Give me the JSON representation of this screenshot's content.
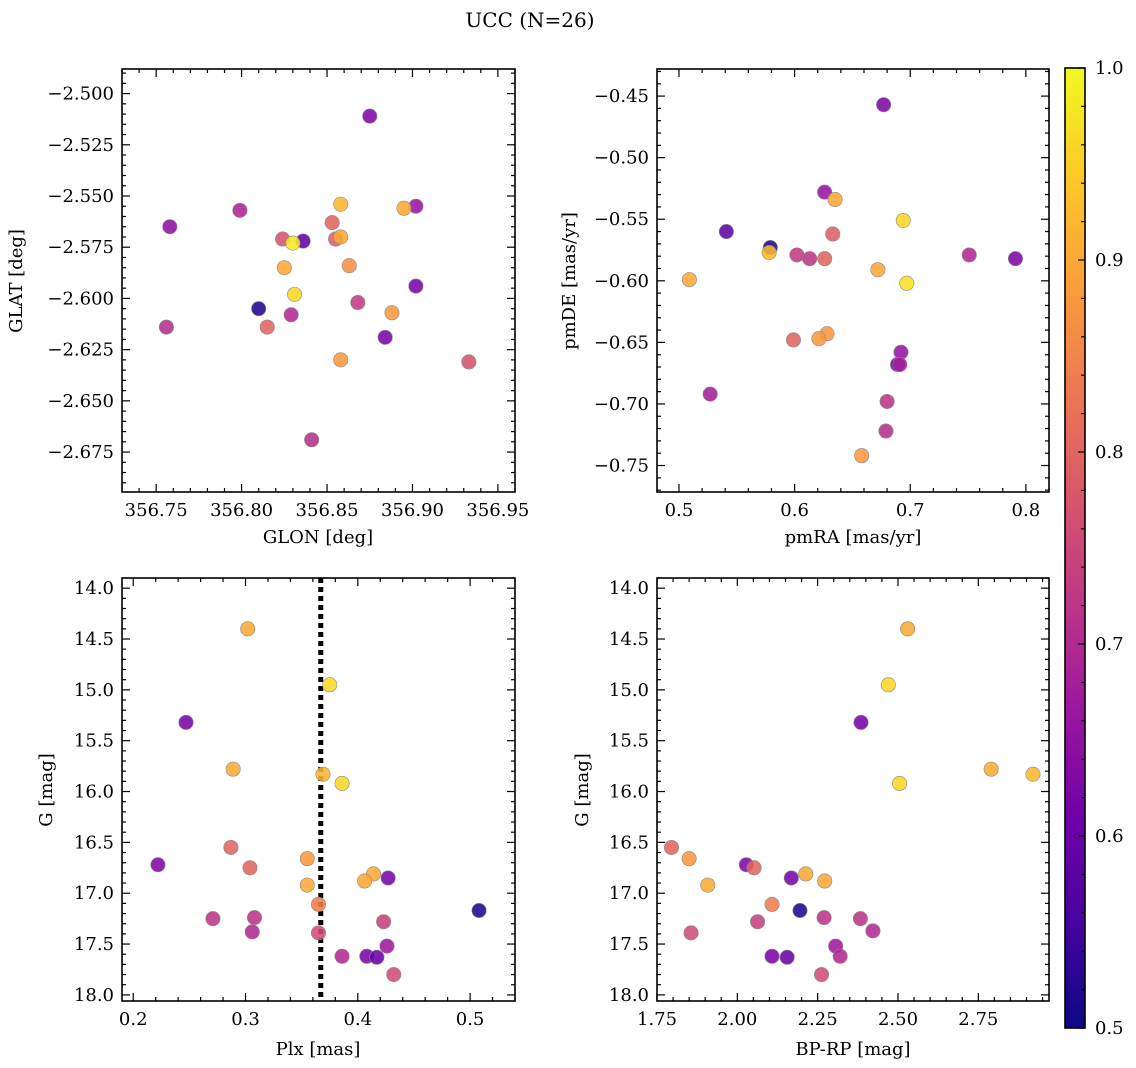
{
  "figure_title": "UCC (N=26)",
  "colorbar": {
    "min": 0.5,
    "max": 1.0,
    "ticks": [
      "0.5",
      "0.6",
      "0.7",
      "0.8",
      "0.9",
      "1.0"
    ],
    "colormap": "plasma"
  },
  "colormap_stops": [
    "#0d0887",
    "#46039f",
    "#7201a8",
    "#9c179e",
    "#bd3786",
    "#d8576b",
    "#ed7953",
    "#fb9f3a",
    "#fdca26",
    "#f0f921"
  ],
  "chart_data": [
    {
      "type": "scatter",
      "id": "glon-glat",
      "xlabel": "GLON [deg]",
      "ylabel": "GLAT [deg]",
      "xlim": [
        356.73,
        356.96
      ],
      "ylim": [
        -2.6945,
        -2.488
      ],
      "xticks": [
        356.75,
        356.8,
        356.85,
        356.9,
        356.95
      ],
      "xtick_labels": [
        "356.75",
        "356.80",
        "356.85",
        "356.90",
        "356.95"
      ],
      "yticks": [
        -2.5,
        -2.525,
        -2.55,
        -2.575,
        -2.6,
        -2.625,
        -2.65,
        -2.675
      ],
      "ytick_labels": [
        "−2.500",
        "−2.525",
        "−2.550",
        "−2.575",
        "−2.600",
        "−2.625",
        "−2.650",
        "−2.675"
      ],
      "points": [
        {
          "x": 356.875,
          "y": -2.511,
          "p": 0.63
        },
        {
          "x": 356.799,
          "y": -2.557,
          "p": 0.69
        },
        {
          "x": 356.758,
          "y": -2.565,
          "p": 0.65
        },
        {
          "x": 356.902,
          "y": -2.555,
          "p": 0.66
        },
        {
          "x": 356.858,
          "y": -2.554,
          "p": 0.92
        },
        {
          "x": 356.895,
          "y": -2.556,
          "p": 0.9
        },
        {
          "x": 356.853,
          "y": -2.563,
          "p": 0.8
        },
        {
          "x": 356.824,
          "y": -2.571,
          "p": 0.77
        },
        {
          "x": 356.836,
          "y": -2.572,
          "p": 0.59
        },
        {
          "x": 356.83,
          "y": -2.573,
          "p": 0.98
        },
        {
          "x": 356.855,
          "y": -2.571,
          "p": 0.79
        },
        {
          "x": 356.858,
          "y": -2.57,
          "p": 0.9
        },
        {
          "x": 356.825,
          "y": -2.585,
          "p": 0.9
        },
        {
          "x": 356.863,
          "y": -2.584,
          "p": 0.87
        },
        {
          "x": 356.831,
          "y": -2.598,
          "p": 0.96
        },
        {
          "x": 356.902,
          "y": -2.594,
          "p": 0.62
        },
        {
          "x": 356.868,
          "y": -2.602,
          "p": 0.73
        },
        {
          "x": 356.81,
          "y": -2.605,
          "p": 0.52
        },
        {
          "x": 356.888,
          "y": -2.607,
          "p": 0.88
        },
        {
          "x": 356.829,
          "y": -2.608,
          "p": 0.7
        },
        {
          "x": 356.815,
          "y": -2.614,
          "p": 0.8
        },
        {
          "x": 356.756,
          "y": -2.614,
          "p": 0.71
        },
        {
          "x": 356.884,
          "y": -2.619,
          "p": 0.62
        },
        {
          "x": 356.858,
          "y": -2.63,
          "p": 0.88
        },
        {
          "x": 356.933,
          "y": -2.631,
          "p": 0.77
        },
        {
          "x": 356.841,
          "y": -2.669,
          "p": 0.71
        }
      ]
    },
    {
      "type": "scatter",
      "id": "pm",
      "xlabel": "pmRA [mas/yr]",
      "ylabel": "pmDE [mas/yr]",
      "xlim": [
        0.481,
        0.82
      ],
      "ylim": [
        -0.7715,
        -0.428
      ],
      "xticks": [
        0.5,
        0.6,
        0.7,
        0.8
      ],
      "xtick_labels": [
        "0.5",
        "0.6",
        "0.7",
        "0.8"
      ],
      "yticks": [
        -0.45,
        -0.5,
        -0.55,
        -0.6,
        -0.65,
        -0.7,
        -0.75
      ],
      "ytick_labels": [
        "−0.45",
        "−0.50",
        "−0.55",
        "−0.60",
        "−0.65",
        "−0.70",
        "−0.75"
      ],
      "points": [
        {
          "x": 0.677,
          "y": -0.457,
          "p": 0.63
        },
        {
          "x": 0.626,
          "y": -0.528,
          "p": 0.66
        },
        {
          "x": 0.635,
          "y": -0.534,
          "p": 0.9
        },
        {
          "x": 0.694,
          "y": -0.551,
          "p": 0.96
        },
        {
          "x": 0.541,
          "y": -0.56,
          "p": 0.59
        },
        {
          "x": 0.633,
          "y": -0.562,
          "p": 0.79
        },
        {
          "x": 0.579,
          "y": -0.573,
          "p": 0.52
        },
        {
          "x": 0.578,
          "y": -0.577,
          "p": 0.92
        },
        {
          "x": 0.602,
          "y": -0.579,
          "p": 0.73
        },
        {
          "x": 0.751,
          "y": -0.579,
          "p": 0.7
        },
        {
          "x": 0.613,
          "y": -0.582,
          "p": 0.72
        },
        {
          "x": 0.626,
          "y": -0.582,
          "p": 0.8
        },
        {
          "x": 0.791,
          "y": -0.582,
          "p": 0.63
        },
        {
          "x": 0.672,
          "y": -0.591,
          "p": 0.9
        },
        {
          "x": 0.509,
          "y": -0.599,
          "p": 0.9
        },
        {
          "x": 0.697,
          "y": -0.602,
          "p": 0.97
        },
        {
          "x": 0.628,
          "y": -0.643,
          "p": 0.88
        },
        {
          "x": 0.599,
          "y": -0.648,
          "p": 0.8
        },
        {
          "x": 0.621,
          "y": -0.647,
          "p": 0.88
        },
        {
          "x": 0.692,
          "y": -0.658,
          "p": 0.66
        },
        {
          "x": 0.689,
          "y": -0.668,
          "p": 0.6
        },
        {
          "x": 0.691,
          "y": -0.668,
          "p": 0.68
        },
        {
          "x": 0.527,
          "y": -0.692,
          "p": 0.68
        },
        {
          "x": 0.68,
          "y": -0.698,
          "p": 0.72
        },
        {
          "x": 0.679,
          "y": -0.722,
          "p": 0.71
        },
        {
          "x": 0.658,
          "y": -0.742,
          "p": 0.88
        }
      ]
    },
    {
      "type": "scatter",
      "id": "plx-g",
      "xlabel": "Plx [mas]",
      "ylabel": "G [mag]",
      "xlim": [
        0.19,
        0.54
      ],
      "ylim": [
        18.06,
        13.9
      ],
      "xticks": [
        0.2,
        0.3,
        0.4,
        0.5
      ],
      "xtick_labels": [
        "0.2",
        "0.3",
        "0.4",
        "0.5"
      ],
      "yticks": [
        14.0,
        14.5,
        15.0,
        15.5,
        16.0,
        16.5,
        17.0,
        17.5,
        18.0
      ],
      "ytick_labels": [
        "14.0",
        "14.5",
        "15.0",
        "15.5",
        "16.0",
        "16.5",
        "17.0",
        "17.5",
        "18.0"
      ],
      "vline": 0.367,
      "points": [
        {
          "x": 0.302,
          "y": 14.4,
          "p": 0.9
        },
        {
          "x": 0.375,
          "y": 14.95,
          "p": 0.96
        },
        {
          "x": 0.247,
          "y": 15.32,
          "p": 0.62
        },
        {
          "x": 0.289,
          "y": 15.78,
          "p": 0.9
        },
        {
          "x": 0.369,
          "y": 15.83,
          "p": 0.92
        },
        {
          "x": 0.386,
          "y": 15.92,
          "p": 0.96
        },
        {
          "x": 0.287,
          "y": 16.55,
          "p": 0.8
        },
        {
          "x": 0.355,
          "y": 16.66,
          "p": 0.88
        },
        {
          "x": 0.222,
          "y": 16.72,
          "p": 0.63
        },
        {
          "x": 0.304,
          "y": 16.75,
          "p": 0.8
        },
        {
          "x": 0.414,
          "y": 16.81,
          "p": 0.9
        },
        {
          "x": 0.427,
          "y": 16.85,
          "p": 0.62
        },
        {
          "x": 0.406,
          "y": 16.88,
          "p": 0.9
        },
        {
          "x": 0.355,
          "y": 16.92,
          "p": 0.9
        },
        {
          "x": 0.365,
          "y": 17.11,
          "p": 0.84
        },
        {
          "x": 0.508,
          "y": 17.17,
          "p": 0.52
        },
        {
          "x": 0.308,
          "y": 17.24,
          "p": 0.72
        },
        {
          "x": 0.271,
          "y": 17.25,
          "p": 0.72
        },
        {
          "x": 0.423,
          "y": 17.28,
          "p": 0.74
        },
        {
          "x": 0.306,
          "y": 17.38,
          "p": 0.7
        },
        {
          "x": 0.365,
          "y": 17.39,
          "p": 0.76
        },
        {
          "x": 0.426,
          "y": 17.52,
          "p": 0.67
        },
        {
          "x": 0.386,
          "y": 17.62,
          "p": 0.7
        },
        {
          "x": 0.408,
          "y": 17.62,
          "p": 0.62
        },
        {
          "x": 0.417,
          "y": 17.63,
          "p": 0.6
        },
        {
          "x": 0.432,
          "y": 17.8,
          "p": 0.76
        }
      ]
    },
    {
      "type": "scatter",
      "id": "cmd",
      "xlabel": "BP-RP [mag]",
      "ylabel": "G [mag]",
      "xlim": [
        1.75,
        2.97
      ],
      "ylim": [
        18.06,
        13.9
      ],
      "xticks": [
        1.75,
        2.0,
        2.25,
        2.5,
        2.75
      ],
      "xtick_labels": [
        "1.75",
        "2.00",
        "2.25",
        "2.50",
        "2.75"
      ],
      "yticks": [
        14.0,
        14.5,
        15.0,
        15.5,
        16.0,
        16.5,
        17.0,
        17.5,
        18.0
      ],
      "ytick_labels": [
        "14.0",
        "14.5",
        "15.0",
        "15.5",
        "16.0",
        "16.5",
        "17.0",
        "17.5",
        "18.0"
      ],
      "points": [
        {
          "x": 2.53,
          "y": 14.4,
          "p": 0.9
        },
        {
          "x": 2.47,
          "y": 14.95,
          "p": 0.96
        },
        {
          "x": 2.385,
          "y": 15.32,
          "p": 0.62
        },
        {
          "x": 2.79,
          "y": 15.78,
          "p": 0.9
        },
        {
          "x": 2.92,
          "y": 15.83,
          "p": 0.92
        },
        {
          "x": 2.505,
          "y": 15.92,
          "p": 0.96
        },
        {
          "x": 1.795,
          "y": 16.55,
          "p": 0.8
        },
        {
          "x": 1.85,
          "y": 16.66,
          "p": 0.88
        },
        {
          "x": 2.028,
          "y": 16.72,
          "p": 0.63
        },
        {
          "x": 2.052,
          "y": 16.75,
          "p": 0.8
        },
        {
          "x": 2.213,
          "y": 16.81,
          "p": 0.9
        },
        {
          "x": 2.168,
          "y": 16.85,
          "p": 0.62
        },
        {
          "x": 2.272,
          "y": 16.88,
          "p": 0.9
        },
        {
          "x": 1.908,
          "y": 16.92,
          "p": 0.9
        },
        {
          "x": 2.108,
          "y": 17.11,
          "p": 0.84
        },
        {
          "x": 2.195,
          "y": 17.17,
          "p": 0.52
        },
        {
          "x": 2.27,
          "y": 17.24,
          "p": 0.72
        },
        {
          "x": 2.383,
          "y": 17.25,
          "p": 0.72
        },
        {
          "x": 2.063,
          "y": 17.28,
          "p": 0.74
        },
        {
          "x": 2.422,
          "y": 17.37,
          "p": 0.7
        },
        {
          "x": 1.856,
          "y": 17.39,
          "p": 0.76
        },
        {
          "x": 2.306,
          "y": 17.52,
          "p": 0.67
        },
        {
          "x": 2.108,
          "y": 17.62,
          "p": 0.62
        },
        {
          "x": 2.32,
          "y": 17.62,
          "p": 0.7
        },
        {
          "x": 2.155,
          "y": 17.63,
          "p": 0.6
        },
        {
          "x": 2.262,
          "y": 17.8,
          "p": 0.76
        }
      ]
    }
  ]
}
